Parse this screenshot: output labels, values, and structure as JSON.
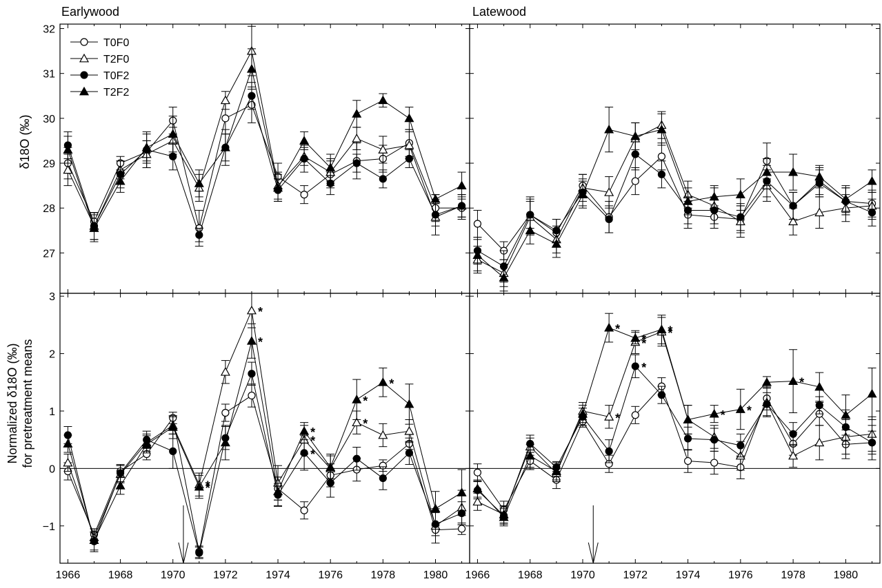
{
  "figure": {
    "panel_titles": [
      "Earlywood",
      "Latewood"
    ],
    "top_ylabel": "δ18O (‰)",
    "bottom_ylabel_line1": "Normalized δ18O (‰)",
    "bottom_ylabel_line2": "for pretreatment means",
    "legend": [
      {
        "label": "T0F0",
        "marker": "circle-open"
      },
      {
        "label": "T2F0",
        "marker": "triangle-open"
      },
      {
        "label": "T0F2",
        "marker": "circle-filled"
      },
      {
        "label": "T2F2",
        "marker": "triangle-filled"
      }
    ],
    "treatment_arrow_year": 1970.4
  },
  "chart_data": [
    {
      "type": "line",
      "panel": "Earlywood (top)",
      "title": "Earlywood",
      "ylabel": "δ18O (‰)",
      "xlim": [
        1965.7,
        1981.3
      ],
      "ylim": [
        26.1,
        32.1
      ],
      "yticks": [
        27,
        28,
        29,
        30,
        31,
        32
      ],
      "xticks": [
        1966,
        1968,
        1970,
        1972,
        1974,
        1976,
        1978,
        1980
      ],
      "x": [
        1966,
        1967,
        1968,
        1969,
        1970,
        1971,
        1972,
        1973,
        1974,
        1975,
        1976,
        1977,
        1978,
        1979,
        1980,
        1981
      ],
      "series": [
        {
          "name": "T0F0",
          "values": [
            29.0,
            27.7,
            29.0,
            29.25,
            29.95,
            27.55,
            30.0,
            30.3,
            28.7,
            28.3,
            28.75,
            29.05,
            29.1,
            29.45,
            28.0,
            28.0
          ],
          "errors": [
            0.35,
            0.2,
            0.15,
            0.25,
            0.3,
            0.4,
            0.35,
            0.4,
            0.3,
            0.2,
            0.3,
            0.4,
            0.3,
            0.3,
            0.3,
            0.25
          ]
        },
        {
          "name": "T2F0",
          "values": [
            28.85,
            27.6,
            28.85,
            29.2,
            29.5,
            28.45,
            30.4,
            31.5,
            28.5,
            29.15,
            28.8,
            29.55,
            29.3,
            29.4,
            27.8,
            28.05
          ],
          "errors": [
            0.35,
            0.3,
            0.2,
            0.3,
            0.3,
            0.3,
            0.2,
            0.55,
            0.3,
            0.2,
            0.3,
            0.25,
            0.3,
            0.3,
            0.4,
            0.25
          ]
        },
        {
          "name": "T0F2",
          "values": [
            29.4,
            27.6,
            28.75,
            29.3,
            29.15,
            27.4,
            29.35,
            30.5,
            28.4,
            29.1,
            28.55,
            29.0,
            28.65,
            29.1,
            27.85,
            28.05
          ],
          "errors": [
            0.3,
            0.3,
            0.3,
            0.4,
            0.3,
            0.15,
            0.3,
            0.3,
            0.25,
            0.3,
            0.25,
            0.2,
            0.2,
            0.2,
            0.25,
            0.25
          ]
        },
        {
          "name": "T2F2",
          "values": [
            29.3,
            27.55,
            28.6,
            29.35,
            29.65,
            28.55,
            29.35,
            31.1,
            28.45,
            29.5,
            28.9,
            30.1,
            30.4,
            30.0,
            28.2,
            28.5
          ],
          "errors": [
            0.3,
            0.3,
            0.25,
            0.3,
            0.4,
            0.3,
            0.4,
            0.45,
            0.3,
            0.2,
            0.3,
            0.3,
            0.15,
            0.25,
            0.1,
            0.3
          ]
        }
      ]
    },
    {
      "type": "line",
      "panel": "Latewood (top)",
      "title": "Latewood",
      "ylabel": "δ18O (‰)",
      "xlim": [
        1965.7,
        1981.3
      ],
      "ylim": [
        26.1,
        32.1
      ],
      "yticks": [
        27,
        28,
        29,
        30,
        31,
        32
      ],
      "xticks": [
        1966,
        1968,
        1970,
        1972,
        1974,
        1976,
        1978,
        1980
      ],
      "x": [
        1966,
        1967,
        1968,
        1969,
        1970,
        1971,
        1972,
        1973,
        1974,
        1975,
        1976,
        1977,
        1978,
        1979,
        1980,
        1981
      ],
      "series": [
        {
          "name": "T0F0",
          "values": [
            27.65,
            27.05,
            27.85,
            27.45,
            28.5,
            27.8,
            28.6,
            29.15,
            27.85,
            27.8,
            27.75,
            29.05,
            28.05,
            28.6,
            28.15,
            28.1
          ],
          "errors": [
            0.3,
            0.2,
            0.4,
            0.3,
            0.25,
            0.35,
            0.3,
            0.3,
            0.3,
            0.25,
            0.3,
            0.4,
            0.3,
            0.3,
            0.3,
            0.3
          ]
        },
        {
          "name": "T2F0",
          "values": [
            26.85,
            26.55,
            27.8,
            27.3,
            28.45,
            28.35,
            29.55,
            29.85,
            28.3,
            28.05,
            27.7,
            28.5,
            27.7,
            27.9,
            28.0,
            28.05
          ],
          "errors": [
            0.3,
            0.3,
            0.4,
            0.3,
            0.3,
            0.35,
            0.35,
            0.3,
            0.3,
            0.4,
            0.35,
            0.35,
            0.3,
            0.35,
            0.3,
            0.3
          ]
        },
        {
          "name": "T0F2",
          "values": [
            27.05,
            26.7,
            27.85,
            27.5,
            28.35,
            27.75,
            29.2,
            28.75,
            27.95,
            27.95,
            27.8,
            28.6,
            28.05,
            28.55,
            28.15,
            27.9
          ],
          "errors": [
            0.3,
            0.35,
            0.3,
            0.25,
            0.3,
            0.3,
            0.35,
            0.3,
            0.3,
            0.3,
            0.3,
            0.35,
            0.3,
            0.3,
            0.3,
            0.3
          ]
        },
        {
          "name": "T2F2",
          "values": [
            26.95,
            26.45,
            27.5,
            27.2,
            28.3,
            29.75,
            29.6,
            29.75,
            28.15,
            28.25,
            28.3,
            28.8,
            28.8,
            28.7,
            28.2,
            28.6
          ],
          "errors": [
            0.35,
            0.3,
            0.3,
            0.3,
            0.3,
            0.5,
            0.3,
            0.35,
            0.3,
            0.25,
            0.35,
            0.3,
            0.4,
            0.25,
            0.3,
            0.25
          ]
        }
      ]
    },
    {
      "type": "line",
      "panel": "Earlywood (bottom)",
      "ylabel": "Normalized δ18O (‰) for pretreatment means",
      "xlim": [
        1965.7,
        1981.3
      ],
      "ylim": [
        -1.65,
        3.05
      ],
      "yticks": [
        -1,
        0,
        1,
        2,
        3
      ],
      "xticks": [
        1966,
        1968,
        1970,
        1972,
        1974,
        1976,
        1978,
        1980
      ],
      "x": [
        1966,
        1967,
        1968,
        1969,
        1970,
        1971,
        1972,
        1973,
        1974,
        1975,
        1976,
        1977,
        1978,
        1979,
        1980,
        1981
      ],
      "series": [
        {
          "name": "T0F0",
          "values": [
            -0.05,
            -1.15,
            -0.05,
            0.25,
            0.88,
            -1.45,
            0.97,
            1.27,
            -0.35,
            -0.73,
            -0.12,
            -0.02,
            0.05,
            0.43,
            -1.07,
            -1.05
          ],
          "errors": [
            0.15,
            0.1,
            0.1,
            0.1,
            0.1,
            0.1,
            0.15,
            0.2,
            0.2,
            0.15,
            0.2,
            0.2,
            0.1,
            0.1,
            0.1,
            0.1
          ],
          "significant": []
        },
        {
          "name": "T2F0",
          "values": [
            0.1,
            -1.2,
            -0.1,
            0.45,
            0.75,
            -0.28,
            1.68,
            2.75,
            -0.25,
            0.5,
            0.0,
            0.8,
            0.58,
            0.65,
            -1.0,
            -0.68
          ],
          "errors": [
            0.15,
            0.1,
            0.15,
            0.15,
            0.15,
            0.2,
            0.2,
            0.3,
            0.3,
            0.25,
            0.25,
            0.2,
            0.2,
            0.2,
            0.3,
            0.3
          ],
          "significant": [
            1971,
            1973,
            1975,
            1977
          ]
        },
        {
          "name": "T0F2",
          "values": [
            0.58,
            -1.27,
            -0.08,
            0.5,
            0.3,
            -1.47,
            0.53,
            1.65,
            -0.46,
            0.27,
            -0.25,
            0.17,
            -0.17,
            0.27,
            -0.97,
            -0.78
          ],
          "errors": [
            0.15,
            0.15,
            0.15,
            0.15,
            0.3,
            0.1,
            0.2,
            0.2,
            0.2,
            0.3,
            0.25,
            0.2,
            0.2,
            0.2,
            0.2,
            0.2
          ],
          "significant": [
            1975
          ]
        },
        {
          "name": "T2F2",
          "values": [
            0.43,
            -1.25,
            -0.3,
            0.42,
            0.72,
            -0.32,
            0.45,
            2.22,
            -0.4,
            0.65,
            0.02,
            1.2,
            1.5,
            1.12,
            -0.7,
            -0.42
          ],
          "errors": [
            0.15,
            0.2,
            0.15,
            0.15,
            0.2,
            0.2,
            0.3,
            0.3,
            0.25,
            0.15,
            0.2,
            0.35,
            0.25,
            0.35,
            0.3,
            0.4
          ],
          "significant": [
            1971,
            1973,
            1975,
            1977,
            1978
          ]
        }
      ]
    },
    {
      "type": "line",
      "panel": "Latewood (bottom)",
      "ylabel": "Normalized δ18O (‰) for pretreatment means",
      "xlim": [
        1965.7,
        1981.3
      ],
      "ylim": [
        -1.65,
        3.05
      ],
      "yticks": [
        -1,
        0,
        1,
        2,
        3
      ],
      "xticks": [
        1966,
        1968,
        1970,
        1972,
        1974,
        1976,
        1978,
        1980
      ],
      "x": [
        1966,
        1967,
        1968,
        1969,
        1970,
        1971,
        1972,
        1973,
        1974,
        1975,
        1976,
        1977,
        1978,
        1979,
        1980,
        1981
      ],
      "series": [
        {
          "name": "T0F0",
          "values": [
            -0.07,
            -0.72,
            0.13,
            -0.2,
            0.82,
            0.08,
            0.93,
            1.43,
            0.13,
            0.1,
            0.02,
            1.22,
            0.43,
            0.95,
            0.42,
            0.45
          ],
          "errors": [
            0.15,
            0.15,
            0.15,
            0.15,
            0.1,
            0.15,
            0.15,
            0.15,
            0.2,
            0.2,
            0.2,
            0.2,
            0.2,
            0.2,
            0.25,
            0.2
          ],
          "significant": []
        },
        {
          "name": "T2F0",
          "values": [
            -0.58,
            -0.8,
            0.38,
            -0.08,
            1.0,
            0.9,
            2.2,
            2.38,
            0.85,
            0.55,
            0.22,
            1.15,
            0.22,
            0.45,
            0.55,
            0.6
          ],
          "errors": [
            0.15,
            0.15,
            0.15,
            0.15,
            0.15,
            0.2,
            0.2,
            0.25,
            0.25,
            0.2,
            0.25,
            0.25,
            0.2,
            0.3,
            0.3,
            0.3
          ],
          "significant": [
            1971,
            1972,
            1973
          ]
        },
        {
          "name": "T0F2",
          "values": [
            -0.38,
            -0.82,
            0.43,
            0.02,
            0.9,
            0.3,
            1.78,
            1.28,
            0.52,
            0.5,
            0.4,
            1.12,
            0.6,
            1.1,
            0.72,
            0.45
          ],
          "errors": [
            0.15,
            0.15,
            0.15,
            0.1,
            0.15,
            0.2,
            0.2,
            0.15,
            0.2,
            0.2,
            0.2,
            0.2,
            0.2,
            0.15,
            0.3,
            0.3
          ],
          "significant": [
            1972
          ]
        },
        {
          "name": "T2F2",
          "values": [
            -0.35,
            -0.85,
            0.22,
            -0.05,
            0.95,
            2.45,
            2.27,
            2.42,
            0.85,
            0.95,
            1.03,
            1.5,
            1.52,
            1.42,
            0.93,
            1.3
          ],
          "errors": [
            0.15,
            0.15,
            0.2,
            0.15,
            0.15,
            0.25,
            0.1,
            0.25,
            0.25,
            0.15,
            0.35,
            0.1,
            0.55,
            0.25,
            0.35,
            0.45
          ],
          "significant": [
            1971,
            1972,
            1973,
            1975,
            1976,
            1978
          ]
        }
      ]
    }
  ]
}
